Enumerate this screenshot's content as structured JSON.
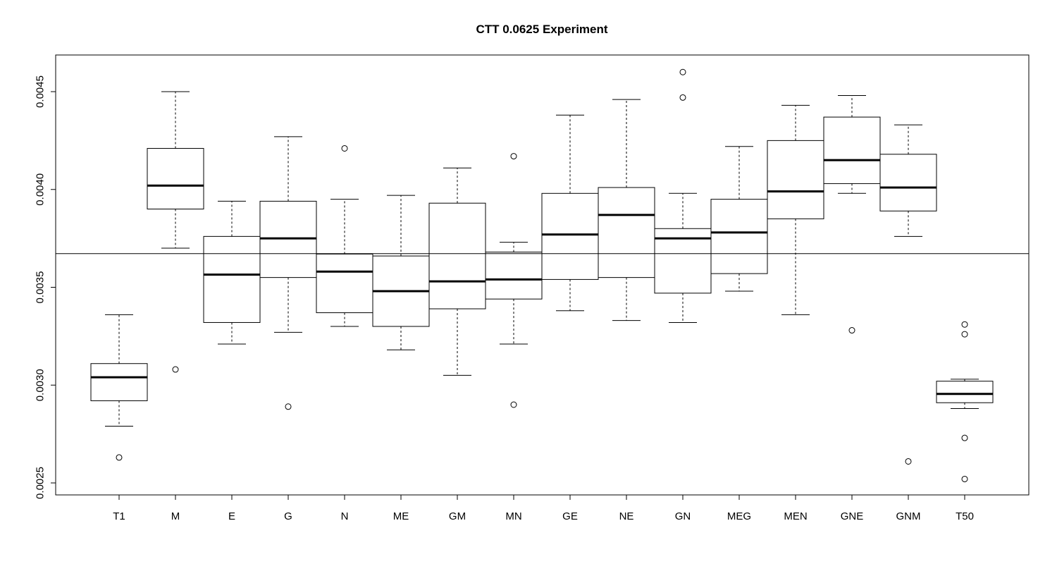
{
  "chart_data": {
    "type": "boxplot",
    "title": "CTT 0.0625 Experiment",
    "xlabel": "",
    "ylabel": "",
    "ylim": [
      0.00244,
      0.00466
    ],
    "yticks": [
      0.0025,
      0.003,
      0.0035,
      0.004,
      0.0045
    ],
    "ytick_labels": [
      "0.0025",
      "0.0030",
      "0.0035",
      "0.0040",
      "0.0045"
    ],
    "reference_line": 0.003672,
    "categories": [
      "T1",
      "M",
      "E",
      "G",
      "N",
      "ME",
      "GM",
      "MN",
      "GE",
      "NE",
      "GN",
      "MEG",
      "MEN",
      "GNE",
      "GNM",
      "T50"
    ],
    "boxes": [
      {
        "name": "T1",
        "whisker_low": 0.00279,
        "q1": 0.00292,
        "median": 0.00304,
        "q3": 0.00311,
        "whisker_high": 0.00336,
        "outliers": [
          0.00263
        ]
      },
      {
        "name": "M",
        "whisker_low": 0.0037,
        "q1": 0.0039,
        "median": 0.00402,
        "q3": 0.00421,
        "whisker_high": 0.0045,
        "outliers": [
          0.00308
        ]
      },
      {
        "name": "E",
        "whisker_low": 0.00321,
        "q1": 0.00332,
        "median": 0.003565,
        "q3": 0.00376,
        "whisker_high": 0.00394,
        "outliers": []
      },
      {
        "name": "G",
        "whisker_low": 0.00327,
        "q1": 0.00355,
        "median": 0.00375,
        "q3": 0.00394,
        "whisker_high": 0.00427,
        "outliers": [
          0.00289
        ]
      },
      {
        "name": "N",
        "whisker_low": 0.0033,
        "q1": 0.00337,
        "median": 0.00358,
        "q3": 0.00367,
        "whisker_high": 0.00395,
        "outliers": [
          0.00421
        ]
      },
      {
        "name": "ME",
        "whisker_low": 0.00318,
        "q1": 0.0033,
        "median": 0.00348,
        "q3": 0.00366,
        "whisker_high": 0.00397,
        "outliers": []
      },
      {
        "name": "GM",
        "whisker_low": 0.00305,
        "q1": 0.00339,
        "median": 0.00353,
        "q3": 0.00393,
        "whisker_high": 0.00411,
        "outliers": []
      },
      {
        "name": "MN",
        "whisker_low": 0.00321,
        "q1": 0.00344,
        "median": 0.00354,
        "q3": 0.00368,
        "whisker_high": 0.00373,
        "outliers": [
          0.00417,
          0.0029
        ]
      },
      {
        "name": "GE",
        "whisker_low": 0.00338,
        "q1": 0.00354,
        "median": 0.00377,
        "q3": 0.00398,
        "whisker_high": 0.00438,
        "outliers": []
      },
      {
        "name": "NE",
        "whisker_low": 0.00333,
        "q1": 0.00355,
        "median": 0.00387,
        "q3": 0.00401,
        "whisker_high": 0.00446,
        "outliers": []
      },
      {
        "name": "GN",
        "whisker_low": 0.00332,
        "q1": 0.00347,
        "median": 0.00375,
        "q3": 0.0038,
        "whisker_high": 0.00398,
        "outliers": [
          0.0046,
          0.00447
        ]
      },
      {
        "name": "MEG",
        "whisker_low": 0.00348,
        "q1": 0.00357,
        "median": 0.00378,
        "q3": 0.00395,
        "whisker_high": 0.00422,
        "outliers": []
      },
      {
        "name": "MEN",
        "whisker_low": 0.00336,
        "q1": 0.00385,
        "median": 0.00399,
        "q3": 0.00425,
        "whisker_high": 0.00443,
        "outliers": []
      },
      {
        "name": "GNE",
        "whisker_low": 0.00398,
        "q1": 0.00403,
        "median": 0.00415,
        "q3": 0.00437,
        "whisker_high": 0.00448,
        "outliers": [
          0.00328
        ]
      },
      {
        "name": "GNM",
        "whisker_low": 0.00376,
        "q1": 0.00389,
        "median": 0.00401,
        "q3": 0.00418,
        "whisker_high": 0.00433,
        "outliers": [
          0.00261
        ]
      },
      {
        "name": "T50",
        "whisker_low": 0.00288,
        "q1": 0.00291,
        "median": 0.002955,
        "q3": 0.00302,
        "whisker_high": 0.00303,
        "outliers": [
          0.00331,
          0.00326,
          0.00273,
          0.00252
        ]
      }
    ],
    "grid": false,
    "legend": "none"
  }
}
